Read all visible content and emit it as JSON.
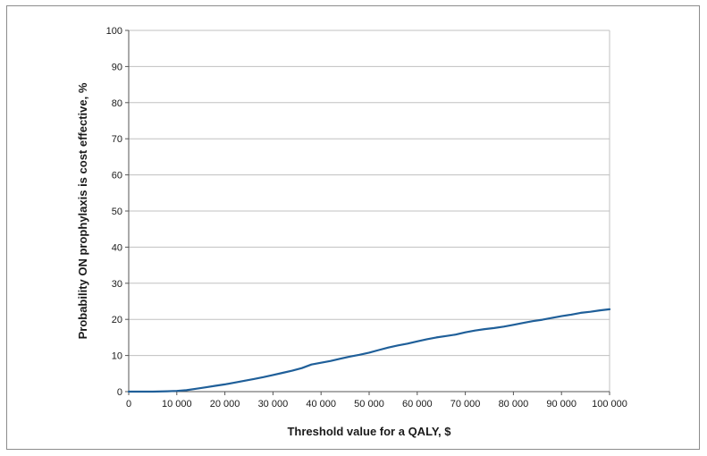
{
  "chart_data": {
    "type": "line",
    "title": "",
    "xlabel": "Threshold value for a QALY, $",
    "ylabel": "Probability ON prophylaxis is cost effective, %",
    "xlim": [
      0,
      100000
    ],
    "ylim": [
      0,
      100
    ],
    "grid": true,
    "x_tick_labels": [
      "0",
      "10 000",
      "20 000",
      "30 000",
      "40 000",
      "50 000",
      "60 000",
      "70 000",
      "80 000",
      "90 000",
      "100 000"
    ],
    "y_tick_labels": [
      "0",
      "10",
      "20",
      "30",
      "40",
      "50",
      "60",
      "70",
      "80",
      "90",
      "100"
    ],
    "x_ticks": [
      0,
      10000,
      20000,
      30000,
      40000,
      50000,
      60000,
      70000,
      80000,
      90000,
      100000
    ],
    "y_ticks": [
      0,
      10,
      20,
      30,
      40,
      50,
      60,
      70,
      80,
      90,
      100
    ],
    "colors": {
      "line": "#1f5f99",
      "grid": "#c0c0c0",
      "axis": "#555555"
    },
    "series": [
      {
        "x": [
          0,
          5000,
          8000,
          10000,
          12000,
          14000,
          16000,
          18000,
          20000,
          22000,
          24000,
          26000,
          28000,
          30000,
          32000,
          34000,
          36000,
          38000,
          40000,
          42000,
          44000,
          46000,
          48000,
          50000,
          52000,
          54000,
          56000,
          58000,
          60000,
          62000,
          64000,
          66000,
          68000,
          70000,
          72000,
          74000,
          76000,
          78000,
          80000,
          82000,
          84000,
          86000,
          88000,
          90000,
          92000,
          94000,
          96000,
          98000,
          100000
        ],
        "values": [
          0,
          0,
          0.1,
          0.2,
          0.4,
          0.8,
          1.2,
          1.6,
          2.0,
          2.5,
          3.0,
          3.5,
          4.0,
          4.6,
          5.2,
          5.8,
          6.5,
          7.5,
          8.0,
          8.5,
          9.1,
          9.7,
          10.2,
          10.8,
          11.5,
          12.2,
          12.8,
          13.3,
          13.9,
          14.5,
          15.0,
          15.4,
          15.8,
          16.4,
          16.9,
          17.3,
          17.6,
          18.0,
          18.5,
          19.0,
          19.5,
          19.9,
          20.4,
          20.9,
          21.3,
          21.8,
          22.1,
          22.5,
          22.8
        ]
      }
    ]
  }
}
